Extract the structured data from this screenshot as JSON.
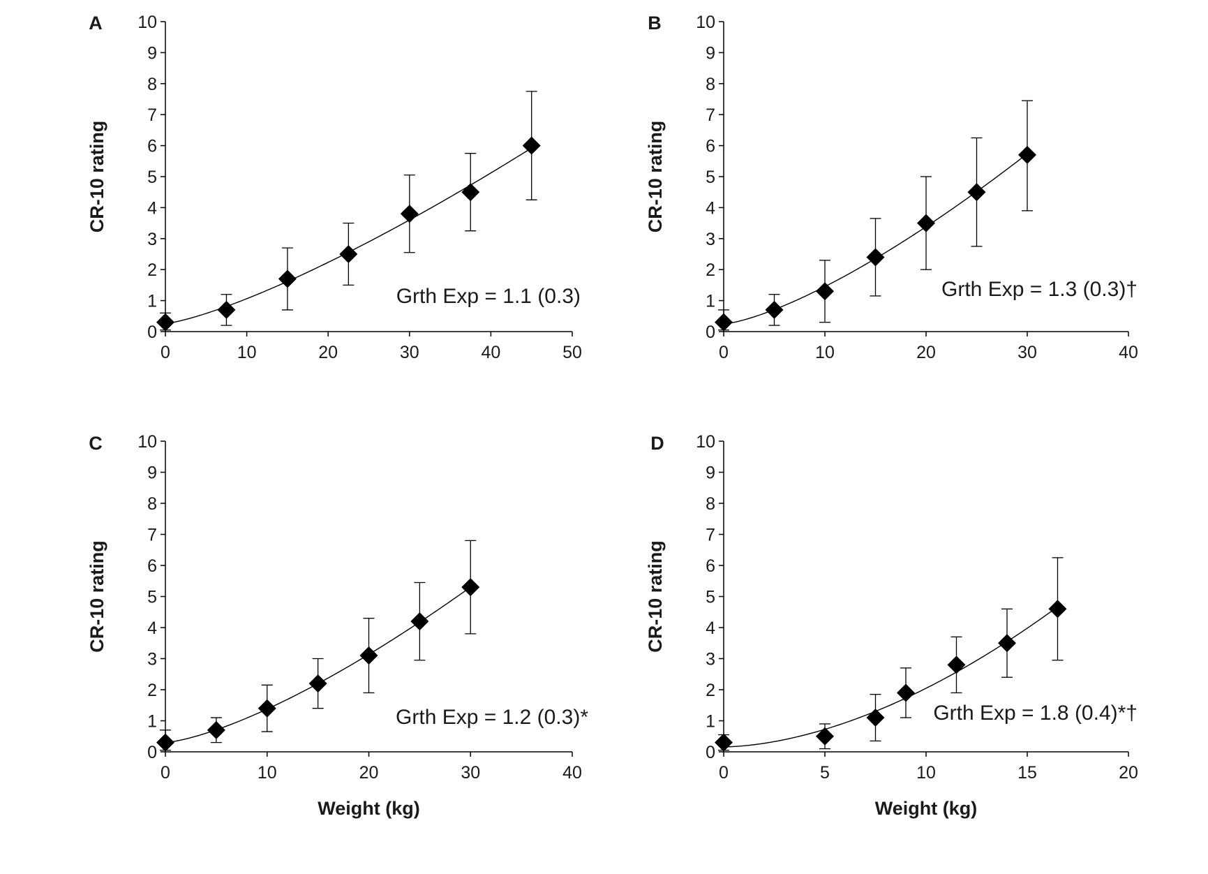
{
  "chart_data": [
    {
      "panel": "A",
      "type": "scatter",
      "x": [
        0,
        7.5,
        15,
        22.5,
        30,
        37.5,
        45
      ],
      "y": [
        0.3,
        0.7,
        1.7,
        2.5,
        3.8,
        4.5,
        6.0
      ],
      "error_upper": [
        0.6,
        1.2,
        2.7,
        3.5,
        5.05,
        5.75,
        7.75
      ],
      "error_lower": [
        0.05,
        0.2,
        0.7,
        1.5,
        2.55,
        3.25,
        4.25
      ],
      "fit": "power curve",
      "annotation": "Grth Exp = 1.1 (0.3)",
      "xlabel": "",
      "ylabel": "CR-10 rating",
      "xlim": [
        0,
        50
      ],
      "ylim": [
        0,
        10
      ],
      "xticks": [
        "0",
        "10",
        "20",
        "30",
        "40",
        "50"
      ],
      "yticks": [
        "0",
        "1",
        "2",
        "3",
        "4",
        "5",
        "6",
        "7",
        "8",
        "9",
        "10"
      ],
      "grid": false
    },
    {
      "panel": "B",
      "type": "scatter",
      "x": [
        0,
        5,
        10,
        15,
        20,
        25,
        30
      ],
      "y": [
        0.3,
        0.7,
        1.3,
        2.4,
        3.5,
        4.5,
        5.7
      ],
      "error_upper": [
        0.7,
        1.2,
        2.3,
        3.65,
        5.0,
        6.25,
        7.45
      ],
      "error_lower": [
        0.05,
        0.2,
        0.3,
        1.15,
        2.0,
        2.75,
        3.9
      ],
      "fit": "power curve",
      "annotation": "Grth Exp = 1.3 (0.3)†",
      "xlabel": "",
      "ylabel": "CR-10 rating",
      "xlim": [
        0,
        40
      ],
      "ylim": [
        0,
        10
      ],
      "xticks": [
        "0",
        "10",
        "20",
        "30",
        "40"
      ],
      "yticks": [
        "0",
        "1",
        "2",
        "3",
        "4",
        "5",
        "6",
        "7",
        "8",
        "9",
        "10"
      ],
      "grid": false
    },
    {
      "panel": "C",
      "type": "scatter",
      "x": [
        0,
        5,
        10,
        15,
        20,
        25,
        30
      ],
      "y": [
        0.3,
        0.7,
        1.4,
        2.2,
        3.1,
        4.2,
        5.3
      ],
      "error_upper": [
        0.7,
        1.1,
        2.15,
        3.0,
        4.3,
        5.45,
        6.8
      ],
      "error_lower": [
        0.05,
        0.3,
        0.65,
        1.4,
        1.9,
        2.95,
        3.8
      ],
      "fit": "power curve",
      "annotation": "Grth Exp = 1.2 (0.3)*",
      "xlabel": "Weight (kg)",
      "ylabel": "CR-10 rating",
      "xlim": [
        0,
        40
      ],
      "ylim": [
        0,
        10
      ],
      "xticks": [
        "0",
        "10",
        "20",
        "30",
        "40"
      ],
      "yticks": [
        "0",
        "1",
        "2",
        "3",
        "4",
        "5",
        "6",
        "7",
        "8",
        "9",
        "10"
      ],
      "grid": false
    },
    {
      "panel": "D",
      "type": "scatter",
      "x": [
        0,
        5,
        7.5,
        9,
        11.5,
        14,
        16.5
      ],
      "y": [
        0.3,
        0.5,
        1.1,
        1.9,
        2.8,
        3.5,
        4.6
      ],
      "error_upper": [
        0.55,
        0.9,
        1.85,
        2.7,
        3.7,
        4.6,
        6.25
      ],
      "error_lower": [
        0.05,
        0.1,
        0.35,
        1.1,
        1.9,
        2.4,
        2.95
      ],
      "fit": "power curve",
      "annotation": "Grth Exp = 1.8 (0.4)*†",
      "xlabel": "Weight (kg)",
      "ylabel": "CR-10 rating",
      "xlim": [
        0,
        20
      ],
      "ylim": [
        0,
        10
      ],
      "xticks": [
        "0",
        "5",
        "10",
        "15",
        "20"
      ],
      "yticks": [
        "0",
        "1",
        "2",
        "3",
        "4",
        "5",
        "6",
        "7",
        "8",
        "9",
        "10"
      ],
      "grid": false
    }
  ]
}
